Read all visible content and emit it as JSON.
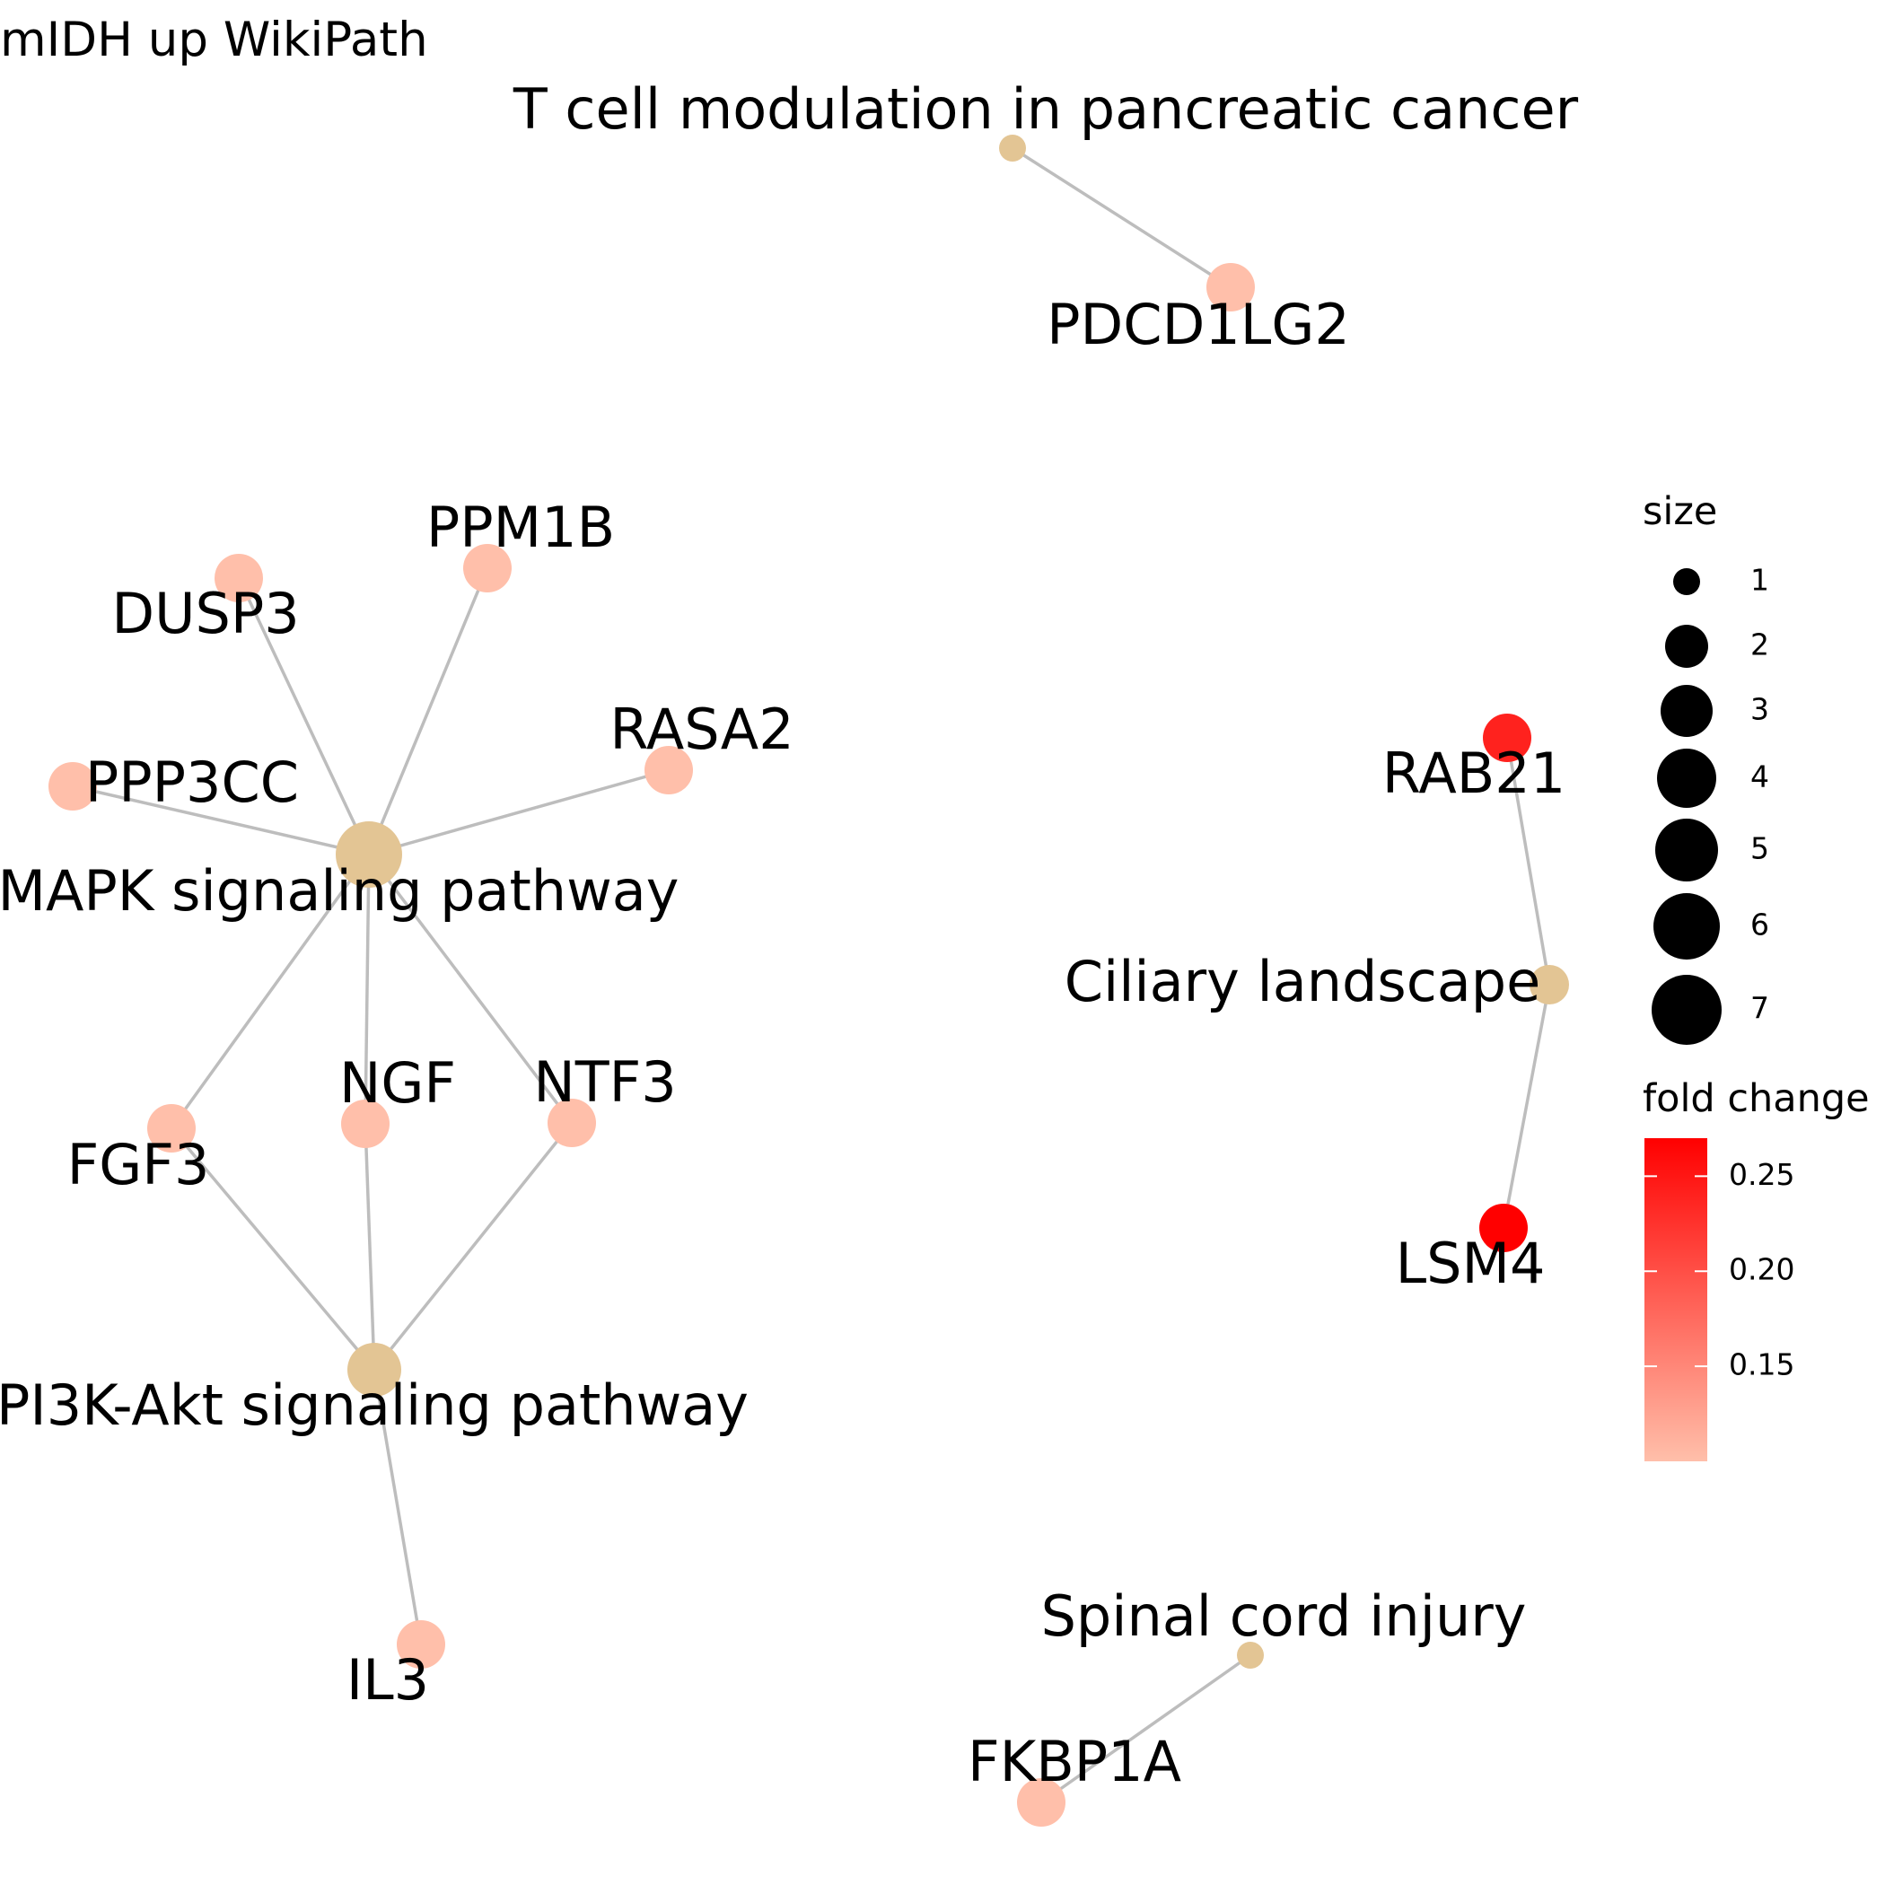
{
  "title": "mIDH up WikiPath",
  "colors": {
    "pathway_node": "#e3c594",
    "edge": "#bdbdbd",
    "gradient_low": "#ffbfaa",
    "gradient_high": "#ff0000"
  },
  "nodes": {
    "tcell": {
      "label": "T cell modulation in pancreatic cancer",
      "kind": "pathway",
      "size": 1
    },
    "pdcd1lg2": {
      "label": "PDCD1LG2",
      "kind": "gene",
      "fold_change": 0.1
    },
    "mapk": {
      "label": "MAPK signaling pathway",
      "kind": "pathway",
      "size": 7
    },
    "dusp3": {
      "label": "DUSP3",
      "kind": "gene",
      "fold_change": 0.1
    },
    "ppm1b": {
      "label": "PPM1B",
      "kind": "gene",
      "fold_change": 0.1
    },
    "rasa2": {
      "label": "RASA2",
      "kind": "gene",
      "fold_change": 0.1
    },
    "ppp3cc": {
      "label": "PPP3CC",
      "kind": "gene",
      "fold_change": 0.1
    },
    "fgf3": {
      "label": "FGF3",
      "kind": "gene",
      "fold_change": 0.1
    },
    "ngf": {
      "label": "NGF",
      "kind": "gene",
      "fold_change": 0.1
    },
    "ntf3": {
      "label": "NTF3",
      "kind": "gene",
      "fold_change": 0.1
    },
    "pi3k": {
      "label": "PI3K-Akt signaling pathway",
      "kind": "pathway",
      "size": 4
    },
    "il3": {
      "label": "IL3",
      "kind": "gene",
      "fold_change": 0.1
    },
    "ciliary": {
      "label": "Ciliary landscape",
      "kind": "pathway",
      "size": 2
    },
    "rab21": {
      "label": "RAB21",
      "kind": "gene",
      "fold_change": 0.24
    },
    "lsm4": {
      "label": "LSM4",
      "kind": "gene",
      "fold_change": 0.27
    },
    "spinal": {
      "label": "Spinal cord injury",
      "kind": "pathway",
      "size": 1
    },
    "fkbp1a": {
      "label": "FKBP1A",
      "kind": "gene",
      "fold_change": 0.1
    }
  },
  "edges": [
    [
      "tcell",
      "pdcd1lg2"
    ],
    [
      "mapk",
      "dusp3"
    ],
    [
      "mapk",
      "ppm1b"
    ],
    [
      "mapk",
      "rasa2"
    ],
    [
      "mapk",
      "ppp3cc"
    ],
    [
      "mapk",
      "fgf3"
    ],
    [
      "mapk",
      "ngf"
    ],
    [
      "mapk",
      "ntf3"
    ],
    [
      "pi3k",
      "fgf3"
    ],
    [
      "pi3k",
      "ngf"
    ],
    [
      "pi3k",
      "ntf3"
    ],
    [
      "pi3k",
      "il3"
    ],
    [
      "ciliary",
      "rab21"
    ],
    [
      "ciliary",
      "lsm4"
    ],
    [
      "spinal",
      "fkbp1a"
    ]
  ],
  "legend": {
    "size_title": "size",
    "size_values": [
      "1",
      "2",
      "3",
      "4",
      "5",
      "6",
      "7"
    ],
    "color_title": "fold change",
    "color_ticks": [
      "0.25",
      "0.20",
      "0.15"
    ],
    "color_tick_values": [
      0.25,
      0.2,
      0.15
    ],
    "color_range": [
      0.1,
      0.27
    ]
  }
}
